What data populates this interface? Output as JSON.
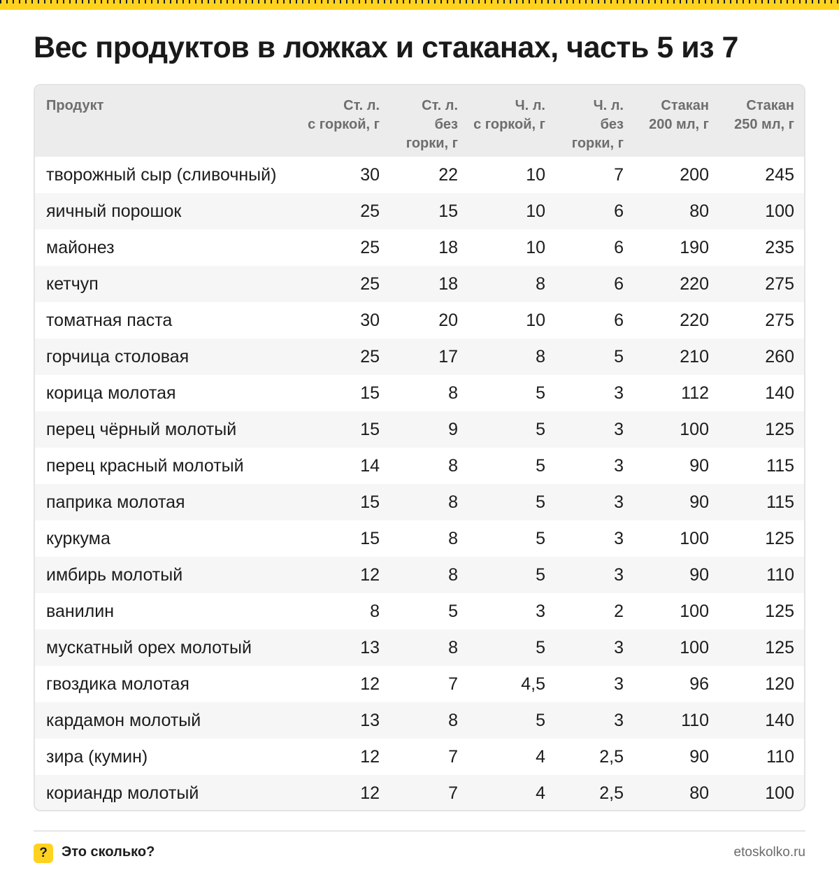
{
  "title": "Вес продуктов в ложках и стаканах, часть 5 из 7",
  "table": {
    "headers": [
      [
        "Продукт"
      ],
      [
        "Ст. л.",
        "с горкой, г"
      ],
      [
        "Ст. л.",
        "без",
        "горки, г"
      ],
      [
        "Ч. л.",
        "с горкой, г"
      ],
      [
        "Ч. л.",
        "без",
        "горки, г"
      ],
      [
        "Стакан",
        "200 мл, г"
      ],
      [
        "Стакан",
        "250 мл, г"
      ]
    ],
    "rows": [
      [
        "творожный сыр (сливочный)",
        "30",
        "22",
        "10",
        "7",
        "200",
        "245"
      ],
      [
        "яичный порошок",
        "25",
        "15",
        "10",
        "6",
        "80",
        "100"
      ],
      [
        "майонез",
        "25",
        "18",
        "10",
        "6",
        "190",
        "235"
      ],
      [
        "кетчуп",
        "25",
        "18",
        "8",
        "6",
        "220",
        "275"
      ],
      [
        "томатная паста",
        "30",
        "20",
        "10",
        "6",
        "220",
        "275"
      ],
      [
        "горчица столовая",
        "25",
        "17",
        "8",
        "5",
        "210",
        "260"
      ],
      [
        "корица молотая",
        "15",
        "8",
        "5",
        "3",
        "112",
        "140"
      ],
      [
        "перец чёрный молотый",
        "15",
        "9",
        "5",
        "3",
        "100",
        "125"
      ],
      [
        "перец красный молотый",
        "14",
        "8",
        "5",
        "3",
        "90",
        "115"
      ],
      [
        "паприка молотая",
        "15",
        "8",
        "5",
        "3",
        "90",
        "115"
      ],
      [
        "куркума",
        "15",
        "8",
        "5",
        "3",
        "100",
        "125"
      ],
      [
        "имбирь молотый",
        "12",
        "8",
        "5",
        "3",
        "90",
        "110"
      ],
      [
        "ванилин",
        "8",
        "5",
        "3",
        "2",
        "100",
        "125"
      ],
      [
        "мускатный орех молотый",
        "13",
        "8",
        "5",
        "3",
        "100",
        "125"
      ],
      [
        "гвоздика молотая",
        "12",
        "7",
        "4,5",
        "3",
        "96",
        "120"
      ],
      [
        "кардамон молотый",
        "13",
        "8",
        "5",
        "3",
        "110",
        "140"
      ],
      [
        "зира (кумин)",
        "12",
        "7",
        "4",
        "2,5",
        "90",
        "110"
      ],
      [
        "кориандр молотый",
        "12",
        "7",
        "4",
        "2,5",
        "80",
        "100"
      ]
    ]
  },
  "footer": {
    "badge": "?",
    "brand": "Это сколько?",
    "site": "etoskolko.ru"
  },
  "colors": {
    "accent": "#ffd21f",
    "header_bg": "#ececec",
    "stripe_bg": "#f6f6f6",
    "muted_text": "#6e6e6e"
  }
}
